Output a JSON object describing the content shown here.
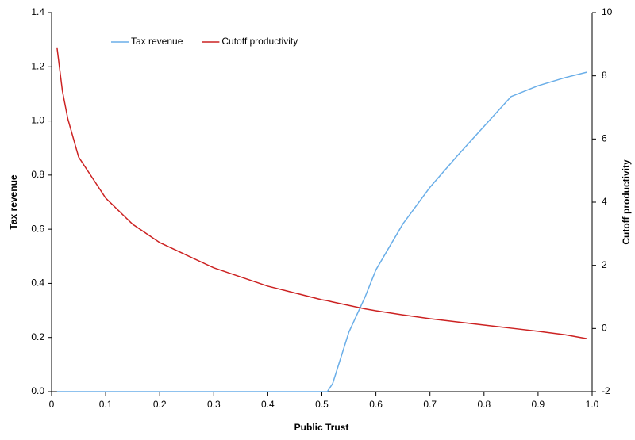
{
  "chart_data": {
    "type": "line",
    "x_label": "Public Trust",
    "y_label": "Tax revenue",
    "y2_label": "Cutoff productivity",
    "x": [
      0.01,
      0.02,
      0.03,
      0.05,
      0.1,
      0.15,
      0.2,
      0.3,
      0.4,
      0.5,
      0.51,
      0.52,
      0.55,
      0.58,
      0.6,
      0.65,
      0.7,
      0.75,
      0.8,
      0.85,
      0.9,
      0.95,
      0.99
    ],
    "series": [
      {
        "name": "Tax revenue",
        "color": "#6aaee8",
        "values": [
          0,
          0,
          0,
          0,
          0,
          0,
          0,
          0,
          0,
          0,
          0,
          0.03,
          0.22,
          0.35,
          0.45,
          0.62,
          0.755,
          0.87,
          0.98,
          1.09,
          1.13,
          1.16,
          1.18
        ]
      },
      {
        "name": "Cutoff productivity",
        "color": "#cc2222",
        "axis": "y2",
        "values": [
          8.9,
          7.52,
          6.64,
          5.43,
          4.13,
          3.3,
          2.72,
          1.92,
          1.34,
          0.91,
          0.88,
          0.84,
          0.73,
          0.62,
          0.56,
          0.43,
          0.31,
          0.21,
          0.11,
          0.01,
          -0.09,
          -0.2,
          -0.32
        ]
      }
    ],
    "xlim": [
      0,
      1
    ],
    "xticks": [
      0,
      0.1,
      0.2,
      0.3,
      0.4,
      0.5,
      0.6,
      0.7,
      0.8,
      0.9,
      {
        "value": 1,
        "label": "1.0"
      }
    ],
    "ylim": [
      0,
      1.4
    ],
    "yticks": [
      {
        "value": 0,
        "label": "0.0"
      },
      0.2,
      0.4,
      0.6,
      0.8,
      {
        "value": 1,
        "label": "1.0"
      },
      1.2,
      1.4
    ],
    "y2lim": [
      -2,
      10
    ],
    "y2ticks": [
      -2,
      0,
      2,
      4,
      6,
      8,
      10
    ],
    "legend": "top"
  }
}
